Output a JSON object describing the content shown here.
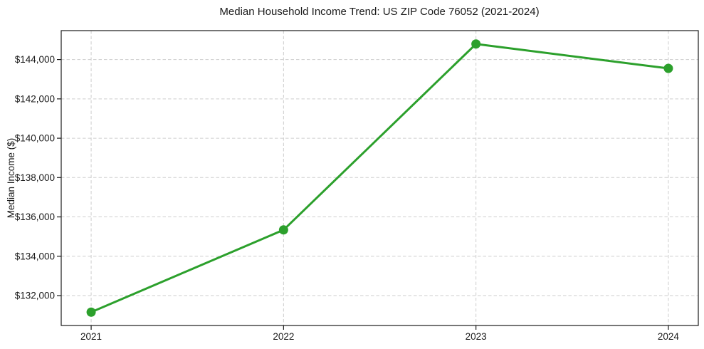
{
  "chart_data": {
    "type": "line",
    "title": "Median Household Income Trend: US ZIP Code 76052 (2021-2024)",
    "xlabel": "",
    "ylabel": "Median Income ($)",
    "categories": [
      "2021",
      "2022",
      "2023",
      "2024"
    ],
    "series": [
      {
        "name": "Median Household Income",
        "values": [
          131160,
          135340,
          144790,
          143550
        ]
      }
    ],
    "ylim": [
      130480,
      145470
    ],
    "yticks": [
      132000,
      134000,
      136000,
      138000,
      140000,
      142000,
      144000
    ],
    "ytick_prefix": "$",
    "grid": true,
    "grid_style": "dashed",
    "legend": null,
    "colors": {
      "line": "#2ca02c",
      "marker": "#2ca02c",
      "gridline": "#cdcdcd",
      "axis_frame": "#1a1a1a",
      "text": "#1a1a1a",
      "background": "#ffffff"
    }
  }
}
